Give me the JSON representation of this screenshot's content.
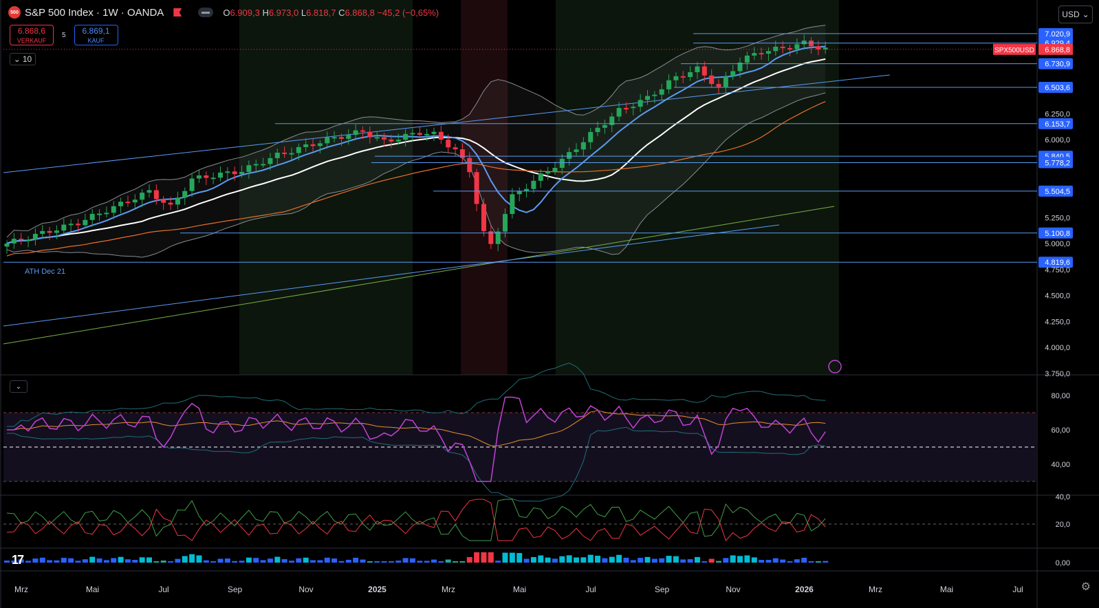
{
  "header": {
    "logo_text": "500",
    "title": "S&P 500 Index · 1W · OANDA",
    "ohlc": {
      "o_label": "O",
      "o": "6.909,3",
      "h_label": "H",
      "h": "6.973,0",
      "l_label": "L",
      "l": "6.818,7",
      "c_label": "C",
      "c": "6.868,8",
      "change": "−45,2 (−0,65%)"
    }
  },
  "trade": {
    "sell_price": "6.868,6",
    "sell_label": "VERKAUF",
    "spread": "5",
    "buy_price": "6.869,1",
    "buy_label": "KAUF"
  },
  "controls": {
    "interval_value": "10",
    "currency": "USD"
  },
  "price_axis": {
    "ticks": [
      "7.020,9",
      "6.929,4",
      "6.730,9",
      "6.503,6",
      "6.250,0",
      "6.153,7",
      "6.000,0",
      "5.840,5",
      "5.778,2",
      "5.504,5",
      "5.250,0",
      "5.100,8",
      "5.000,0",
      "4.819,6",
      "4.750,0",
      "4.500,0",
      "4.250,0",
      "4.000,0",
      "3.750,0"
    ],
    "symbol_label": "SPX500USD",
    "current_price": "6.868,8"
  },
  "level_lines": [
    "7.020,9",
    "6.929,4",
    "6.730,9",
    "6.503,6",
    "6.153,7",
    "5.840,5",
    "5.778,2",
    "5.504,5",
    "5.100,8",
    "4.819,6"
  ],
  "annotation": "ATH Dec 21",
  "rsi_axis": [
    "80,00",
    "60,00",
    "40,00"
  ],
  "dmi_axis": [
    "40,0",
    "20,0"
  ],
  "momentum_axis": [
    "0,00"
  ],
  "time_axis": [
    "Mrz",
    "Mai",
    "Jul",
    "Sep",
    "Nov",
    "2025",
    "Mrz",
    "Mai",
    "Jul",
    "Sep",
    "Nov",
    "2026",
    "Mrz",
    "Mai",
    "Jul"
  ],
  "colors": {
    "up": "#26a65b",
    "down": "#f23645",
    "level": "#5b9cf6",
    "accent": "#2962ff",
    "bb_mid": "#ffffff",
    "ema_blue": "#5b9cf6",
    "ema_orange": "#e8702a",
    "sma_green": "#7cb342",
    "rsi": "#c243d6",
    "rsi_ma": "#e8902a"
  }
}
